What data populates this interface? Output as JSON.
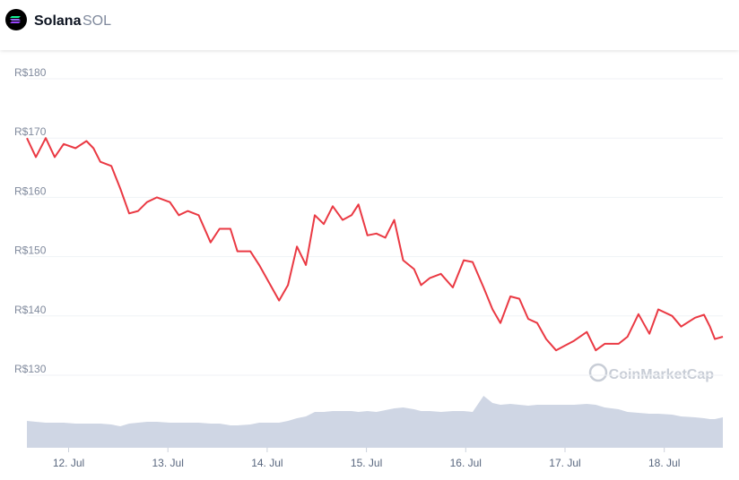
{
  "header": {
    "name": "Solana",
    "symbol": "SOL"
  },
  "chart_data": {
    "type": "line",
    "watermark": "CoinMarketCap",
    "x": [
      11.58,
      11.67,
      11.77,
      11.86,
      11.95,
      12.07,
      12.18,
      12.25,
      12.32,
      12.43,
      12.52,
      12.61,
      12.7,
      12.79,
      12.89,
      13.02,
      13.11,
      13.2,
      13.31,
      13.43,
      13.52,
      13.63,
      13.7,
      13.83,
      13.92,
      14.02,
      14.12,
      14.21,
      14.3,
      14.39,
      14.48,
      14.57,
      14.66,
      14.76,
      14.85,
      14.92,
      15.01,
      15.1,
      15.19,
      15.28,
      15.37,
      15.48,
      15.55,
      15.64,
      15.75,
      15.87,
      15.98,
      16.07,
      16.18,
      16.27,
      16.35,
      16.45,
      16.54,
      16.63,
      16.72,
      16.81,
      16.91,
      17.0,
      17.09,
      17.22,
      17.31,
      17.4,
      17.54,
      17.63,
      17.74,
      17.85,
      17.94,
      18.08,
      18.17,
      18.31,
      18.4,
      18.46,
      18.51,
      18.59
    ],
    "xlim": [
      11.58,
      18.59
    ],
    "xticks": [
      {
        "value": 12,
        "label": "12. Jul"
      },
      {
        "value": 13,
        "label": "13. Jul"
      },
      {
        "value": 14,
        "label": "14. Jul"
      },
      {
        "value": 15,
        "label": "15. Jul"
      },
      {
        "value": 16,
        "label": "16. Jul"
      },
      {
        "value": 17,
        "label": "17. Jul"
      },
      {
        "value": 18,
        "label": "18. Jul"
      }
    ],
    "ylim": [
      130,
      180
    ],
    "yticks": [
      {
        "value": 130,
        "label": "R$130"
      },
      {
        "value": 140,
        "label": "R$140"
      },
      {
        "value": 150,
        "label": "R$150"
      },
      {
        "value": 160,
        "label": "R$160"
      },
      {
        "value": 170,
        "label": "R$170"
      },
      {
        "value": 180,
        "label": "R$180"
      }
    ],
    "y2lim": [
      0,
      100
    ],
    "grid": true,
    "series": [
      {
        "color": "#ea3943",
        "values": [
          170,
          166.8,
          170,
          166.8,
          169,
          168.3,
          169.5,
          168.3,
          166,
          165.3,
          161.5,
          157.3,
          157.7,
          159.2,
          160,
          159.2,
          157,
          157.7,
          157,
          152.4,
          154.7,
          154.7,
          150.9,
          150.9,
          148.6,
          145.6,
          142.6,
          145.2,
          151.7,
          148.6,
          157,
          155.5,
          158.5,
          156.2,
          157,
          158.8,
          153.6,
          153.9,
          153.2,
          156.2,
          149.4,
          147.9,
          145.2,
          146.4,
          147.1,
          144.8,
          149.4,
          149.1,
          144.8,
          141.1,
          138.8,
          143.3,
          142.9,
          139.5,
          138.8,
          136.1,
          134.2,
          135,
          135.8,
          137.3,
          134.2,
          135.3,
          135.3,
          136.5,
          140.3,
          137,
          141.1,
          140,
          138.2,
          139.7,
          140.2,
          138.2,
          136.1,
          136.5
        ]
      },
      {
        "color": "#cfd6e4",
        "axis": "y2",
        "values": [
          30,
          29,
          28,
          28,
          28,
          27,
          27,
          27,
          27,
          26,
          24,
          27,
          28,
          29,
          29,
          28,
          28,
          28,
          28,
          27,
          27,
          25,
          25,
          26,
          28,
          28,
          28,
          30,
          33,
          35,
          40,
          40,
          41,
          41,
          41,
          40,
          41,
          40,
          42,
          44,
          45,
          43,
          41,
          41,
          40,
          41,
          41,
          40,
          58,
          50,
          48,
          49,
          48,
          47,
          48,
          48,
          48,
          48,
          48,
          49,
          48,
          45,
          43,
          40,
          39,
          38,
          38,
          37,
          35,
          34,
          33,
          32,
          32,
          34
        ]
      }
    ]
  }
}
